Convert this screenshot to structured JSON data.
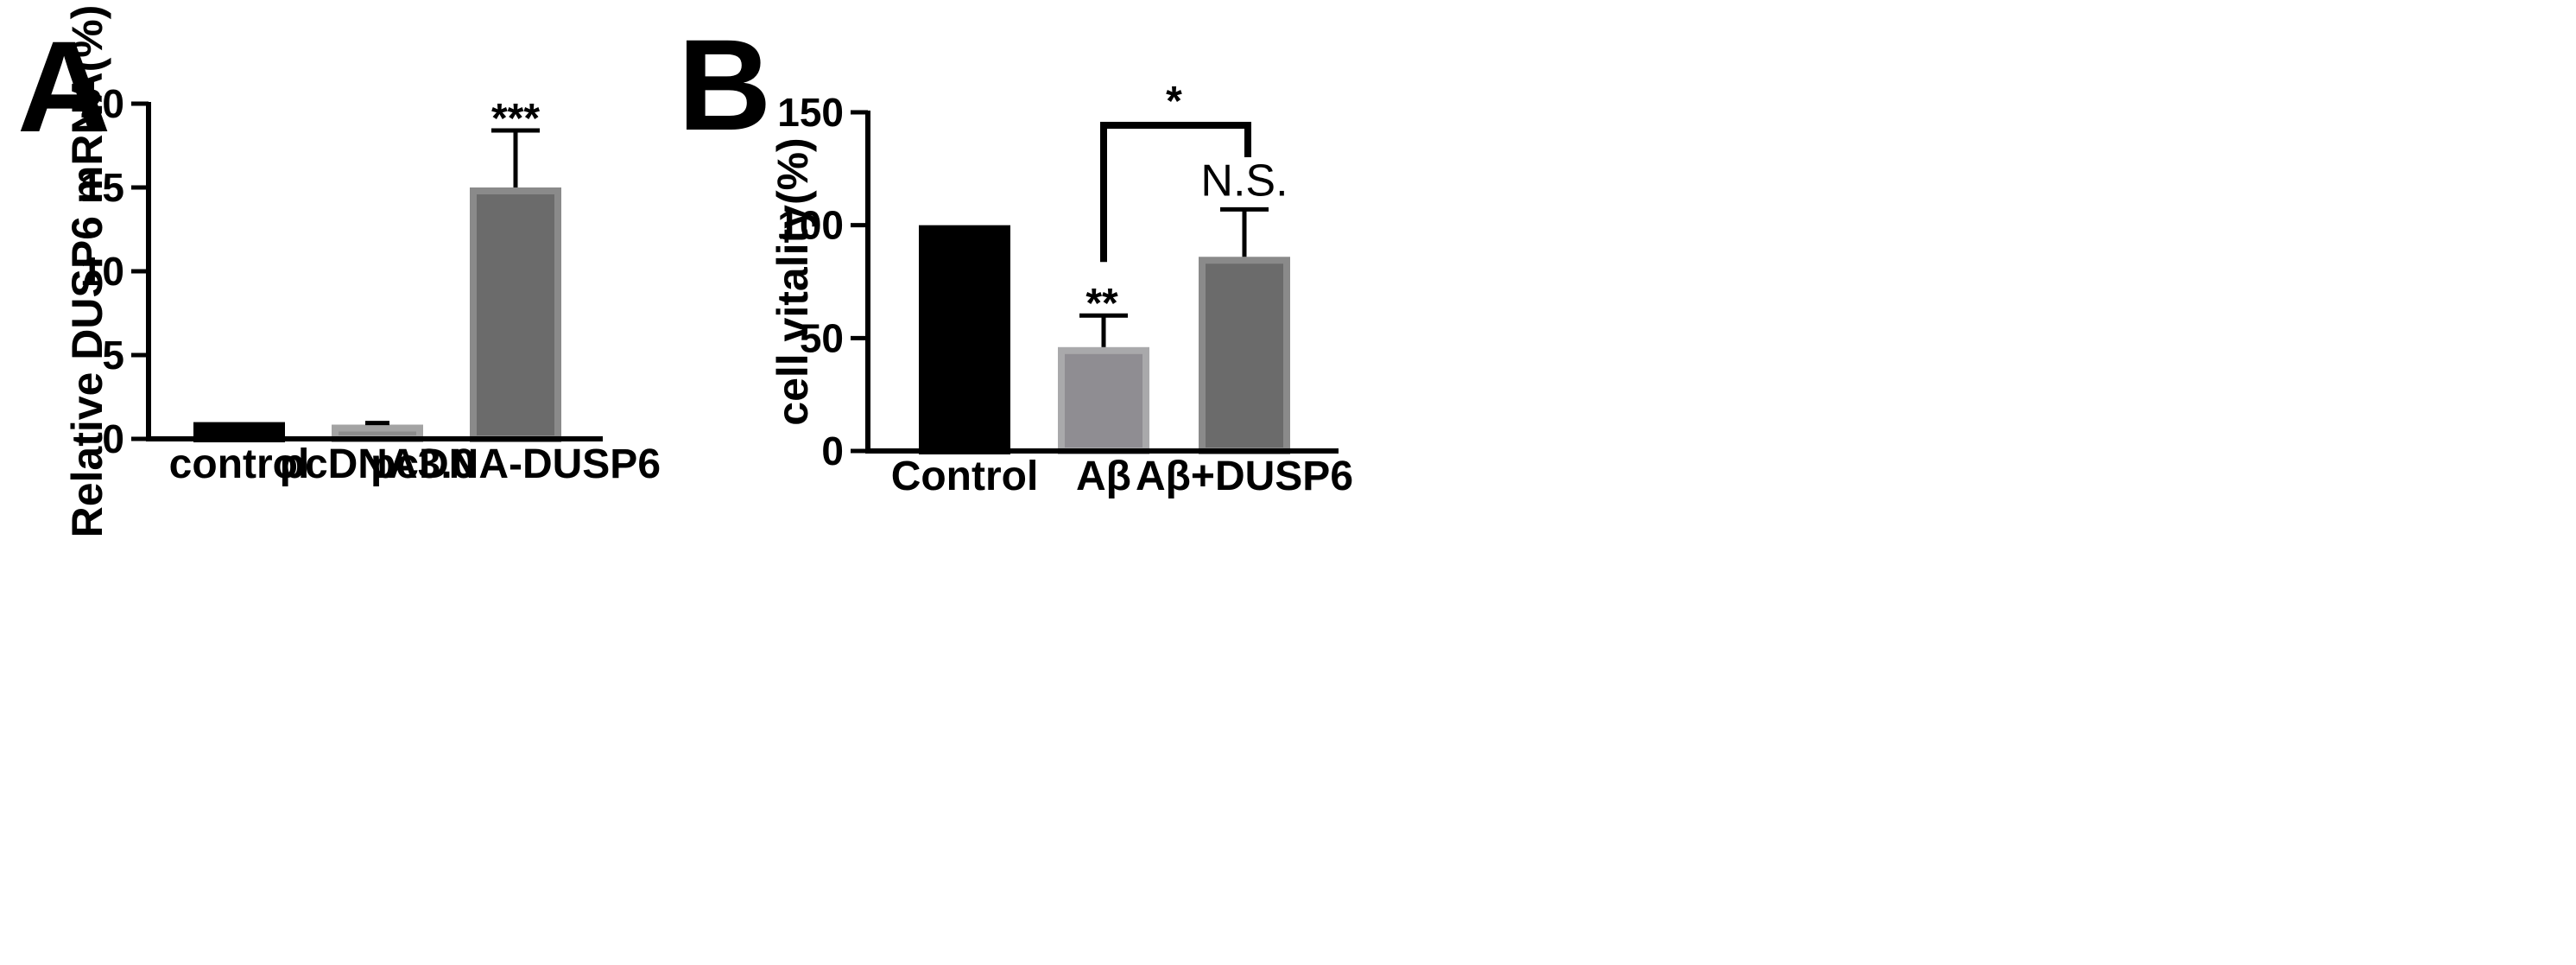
{
  "chart_data": [
    {
      "panel": "A",
      "type": "bar",
      "title": "",
      "xlabel": "",
      "ylabel": "Relative DUSP6 mRNA(%)",
      "ylim": [
        0,
        20
      ],
      "yticks": [
        0,
        5,
        10,
        15,
        20
      ],
      "categories": [
        "control",
        "pcDNA3.0",
        "pcDNA-DUSP6"
      ],
      "values": [
        1.0,
        0.85,
        15.0
      ],
      "errors": [
        0,
        0.1,
        3.4
      ],
      "bar_colors": [
        "#000000",
        "#8c8c8c",
        "#6b6b6b"
      ],
      "bar_edge_colors": [
        "#000000",
        "#a3a3a3",
        "#8a8a8a"
      ],
      "significance": [
        "",
        "",
        "***"
      ],
      "grid": false,
      "legend": "none"
    },
    {
      "panel": "B",
      "type": "bar",
      "title": "",
      "xlabel": "",
      "ylabel": "cell vitality(%)",
      "ylim": [
        0,
        150
      ],
      "yticks": [
        0,
        50,
        100,
        150
      ],
      "categories": [
        "Control",
        "Aβ",
        "Aβ+DUSP6"
      ],
      "values": [
        100,
        46,
        86
      ],
      "errors": [
        0,
        14,
        21
      ],
      "bar_colors": [
        "#000000",
        "#8f8d92",
        "#6b6b6b"
      ],
      "bar_edge_colors": [
        "#000000",
        "#a9a9ab",
        "#8a8a8a"
      ],
      "significance": [
        "",
        "**",
        "N.S."
      ],
      "comparison": {
        "from": 1,
        "to": 2,
        "label": "*"
      },
      "grid": false,
      "legend": "none"
    }
  ]
}
